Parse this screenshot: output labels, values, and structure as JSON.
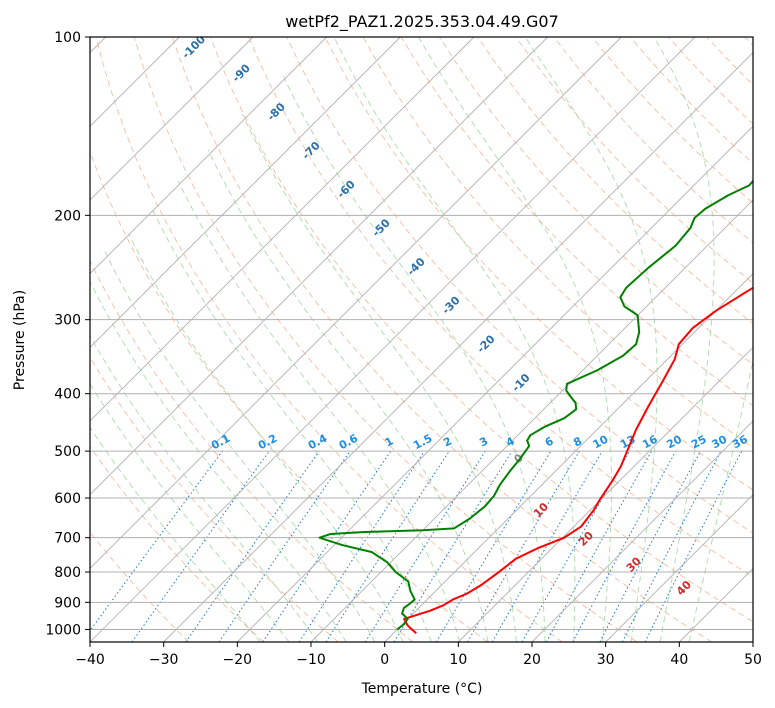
{
  "chart_data": {
    "type": "line",
    "title": "wetPf2_PAZ1.2025.353.04.49.G07",
    "xlabel": "Temperature (°C)",
    "ylabel": "Pressure (hPa)",
    "xlim": [
      -40,
      50
    ],
    "ylim": [
      1050,
      100
    ],
    "y_scale": "log",
    "grid": true,
    "x_ticks": [
      -40,
      -30,
      -20,
      -10,
      0,
      10,
      20,
      30,
      40,
      50
    ],
    "y_ticks": [
      100,
      200,
      300,
      400,
      500,
      600,
      700,
      800,
      900,
      1000
    ],
    "series": [
      {
        "color": "#ff0000",
        "points": [
          [
            3.1,
            1015
          ],
          [
            2,
            1000
          ],
          [
            0.9,
            985
          ],
          [
            -0.5,
            960
          ],
          [
            1.9,
            930
          ],
          [
            3,
            910
          ],
          [
            3.5,
            890
          ],
          [
            4.6,
            870
          ],
          [
            5.4,
            840
          ],
          [
            6,
            800
          ],
          [
            6.5,
            760
          ],
          [
            8,
            730
          ],
          [
            10.2,
            700
          ],
          [
            11,
            670
          ],
          [
            10.5,
            630
          ],
          [
            9.8,
            600
          ],
          [
            9,
            560
          ],
          [
            8.2,
            530
          ],
          [
            7,
            500
          ],
          [
            5.3,
            460
          ],
          [
            3.8,
            420
          ],
          [
            2.3,
            380
          ],
          [
            1,
            350
          ],
          [
            -0.5,
            330
          ],
          [
            -0.8,
            310
          ],
          [
            0,
            290
          ],
          [
            1.5,
            270
          ],
          [
            3.2,
            250
          ],
          [
            5.7,
            230
          ],
          [
            8,
            212
          ],
          [
            11,
            190
          ],
          [
            13.4,
            175
          ],
          [
            15,
            165
          ],
          [
            16,
            155
          ],
          [
            16.4,
            145
          ],
          [
            16.8,
            133
          ],
          [
            17,
            125
          ],
          [
            18,
            117
          ],
          [
            19.5,
            111
          ],
          [
            22,
            105
          ],
          [
            23.7,
            100
          ]
        ]
      },
      {
        "color": "#008000",
        "points": [
          [
            0,
            1000
          ],
          [
            0.2,
            980
          ],
          [
            0,
            960
          ],
          [
            -1.5,
            940
          ],
          [
            -2,
            920
          ],
          [
            -1.8,
            905
          ],
          [
            -1.7,
            890
          ],
          [
            -3.5,
            860
          ],
          [
            -5,
            830
          ],
          [
            -8,
            800
          ],
          [
            -10.5,
            770
          ],
          [
            -14,
            740
          ],
          [
            -19,
            720
          ],
          [
            -23,
            700
          ],
          [
            -22,
            690
          ],
          [
            -18,
            685
          ],
          [
            -10,
            680
          ],
          [
            -6,
            675
          ],
          [
            -5.2,
            650
          ],
          [
            -4.8,
            620
          ],
          [
            -5,
            595
          ],
          [
            -5.7,
            570
          ],
          [
            -6.2,
            540
          ],
          [
            -6.5,
            515
          ],
          [
            -7,
            490
          ],
          [
            -8,
            480
          ],
          [
            -8.3,
            470
          ],
          [
            -7.5,
            455
          ],
          [
            -6,
            440
          ],
          [
            -5.6,
            425
          ],
          [
            -6.5,
            415
          ],
          [
            -8,
            405
          ],
          [
            -9.5,
            395
          ],
          [
            -10.3,
            385
          ],
          [
            -8,
            365
          ],
          [
            -6.5,
            345
          ],
          [
            -6.3,
            330
          ],
          [
            -7.5,
            315
          ],
          [
            -10,
            295
          ],
          [
            -13,
            285
          ],
          [
            -14.8,
            275
          ],
          [
            -15.3,
            265
          ],
          [
            -15,
            245
          ],
          [
            -14.3,
            225
          ],
          [
            -14.7,
            210
          ],
          [
            -15.5,
            202
          ],
          [
            -15.3,
            195
          ],
          [
            -14,
            185
          ],
          [
            -12.5,
            178
          ],
          [
            -12.7,
            170
          ],
          [
            -12.8,
            162
          ],
          [
            -12,
            153
          ],
          [
            -11,
            145
          ],
          [
            -9,
            137
          ],
          [
            -6.2,
            128
          ],
          [
            -4,
            121
          ],
          [
            -2.3,
            114
          ],
          [
            -1,
            108
          ],
          [
            0.5,
            100
          ]
        ]
      }
    ],
    "dry_adiabat_labels": [
      "-100",
      "-90",
      "-80",
      "-70",
      "-60",
      "-50",
      "-40",
      "-30",
      "-20",
      "-10",
      "0",
      "10",
      "20",
      "30",
      "40"
    ],
    "mixing_ratio_labels": [
      "0.1",
      "0.2",
      "0.4",
      "0.6",
      "1",
      "1.5",
      "2",
      "3",
      "4",
      "6",
      "8",
      "10",
      "13",
      "16",
      "20",
      "25",
      "30",
      "36"
    ]
  }
}
